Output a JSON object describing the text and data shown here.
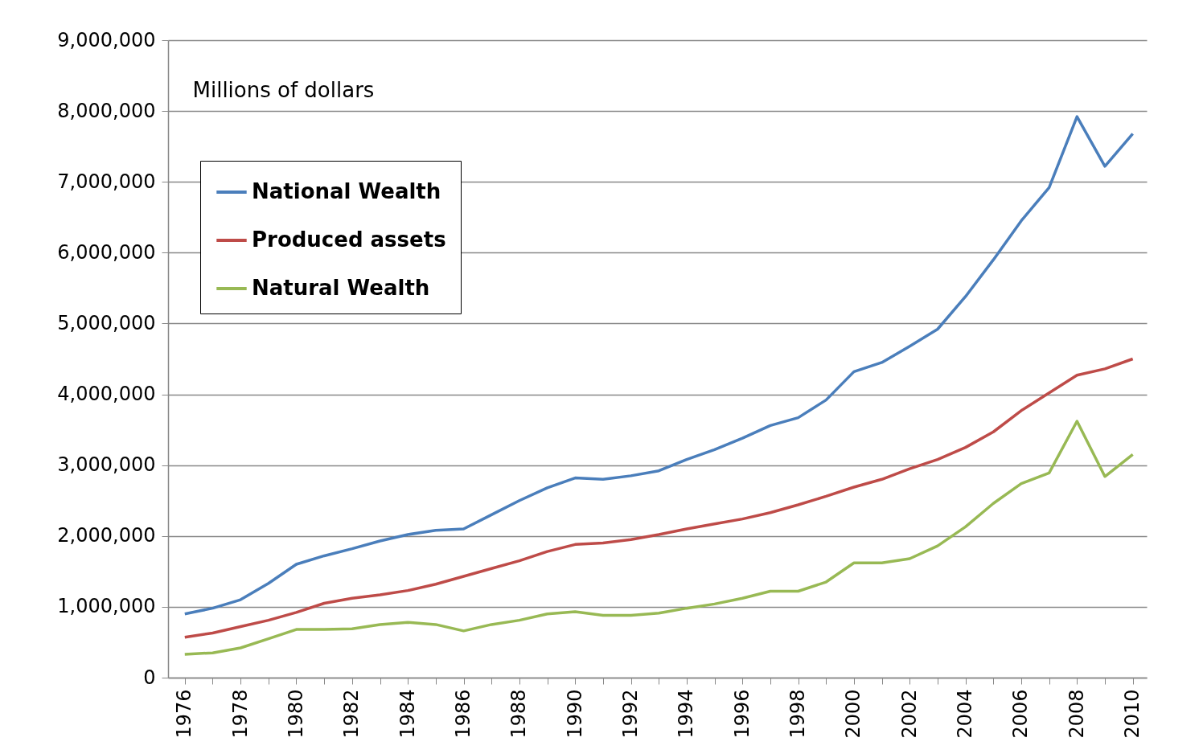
{
  "chart_data": {
    "type": "line",
    "ylabel": "Millions of dollars",
    "x": [
      1976,
      1977,
      1978,
      1979,
      1980,
      1981,
      1982,
      1983,
      1984,
      1985,
      1986,
      1987,
      1988,
      1989,
      1990,
      1991,
      1992,
      1993,
      1994,
      1995,
      1996,
      1997,
      1998,
      1999,
      2000,
      2001,
      2002,
      2003,
      2004,
      2005,
      2006,
      2007,
      2008,
      2009,
      2010
    ],
    "xlim": [
      1975.4,
      2010.5
    ],
    "xticks": [
      1976,
      {
        "value": 1977,
        "label": null
      },
      1978,
      {
        "value": 1979,
        "label": null
      },
      1980,
      {
        "value": 1981,
        "label": null
      },
      1982,
      {
        "value": 1983,
        "label": null
      },
      1984,
      {
        "value": 1985,
        "label": null
      },
      1986,
      {
        "value": 1987,
        "label": null
      },
      1988,
      {
        "value": 1989,
        "label": null
      },
      1990,
      {
        "value": 1991,
        "label": null
      },
      1992,
      {
        "value": 1993,
        "label": null
      },
      1994,
      {
        "value": 1995,
        "label": null
      },
      1996,
      {
        "value": 1997,
        "label": null
      },
      1998,
      {
        "value": 1999,
        "label": null
      },
      2000,
      {
        "value": 2001,
        "label": null
      },
      2002,
      {
        "value": 2003,
        "label": null
      },
      2004,
      {
        "value": 2005,
        "label": null
      },
      2006,
      {
        "value": 2007,
        "label": null
      },
      2008,
      {
        "value": 2009,
        "label": null
      },
      2010
    ],
    "ylim": [
      0,
      9000000
    ],
    "yticks": [
      0,
      {
        "value": 1000000,
        "label": "1,000,000"
      },
      {
        "value": 2000000,
        "label": "2,000,000"
      },
      {
        "value": 3000000,
        "label": "3,000,000"
      },
      {
        "value": 4000000,
        "label": "4,000,000"
      },
      {
        "value": 5000000,
        "label": "5,000,000"
      },
      {
        "value": 6000000,
        "label": "6,000,000"
      },
      {
        "value": 7000000,
        "label": "7,000,000"
      },
      {
        "value": 8000000,
        "label": "8,000,000"
      },
      {
        "value": 9000000,
        "label": "9,000,000"
      }
    ],
    "grid": "y",
    "legend": "top left",
    "line_style": "solid",
    "series": [
      {
        "name": "National Wealth",
        "color": "#4a7ebb",
        "values": [
          900000,
          980000,
          1100000,
          1330000,
          1600000,
          1720000,
          1820000,
          1930000,
          2020000,
          2080000,
          2100000,
          2300000,
          2500000,
          2680000,
          2820000,
          2800000,
          2850000,
          2920000,
          3080000,
          3220000,
          3380000,
          3560000,
          3670000,
          3920000,
          4320000,
          4450000,
          4680000,
          4920000,
          5380000,
          5900000,
          6450000,
          6920000,
          7920000,
          7220000,
          7680000
        ]
      },
      {
        "name": "Produced assets",
        "color": "#be4b48",
        "values": [
          570000,
          630000,
          720000,
          810000,
          920000,
          1050000,
          1120000,
          1170000,
          1230000,
          1320000,
          1430000,
          1540000,
          1650000,
          1780000,
          1880000,
          1900000,
          1950000,
          2020000,
          2100000,
          2170000,
          2240000,
          2330000,
          2440000,
          2560000,
          2690000,
          2800000,
          2950000,
          3080000,
          3250000,
          3470000,
          3770000,
          4020000,
          4270000,
          4360000,
          4500000
        ]
      },
      {
        "name": "Natural Wealth",
        "color": "#98b954",
        "values": [
          330000,
          350000,
          420000,
          550000,
          680000,
          680000,
          690000,
          750000,
          780000,
          750000,
          660000,
          750000,
          810000,
          900000,
          930000,
          880000,
          880000,
          910000,
          980000,
          1040000,
          1120000,
          1220000,
          1220000,
          1350000,
          1620000,
          1620000,
          1680000,
          1860000,
          2130000,
          2460000,
          2740000,
          2890000,
          3620000,
          2840000,
          3150000
        ]
      }
    ]
  }
}
